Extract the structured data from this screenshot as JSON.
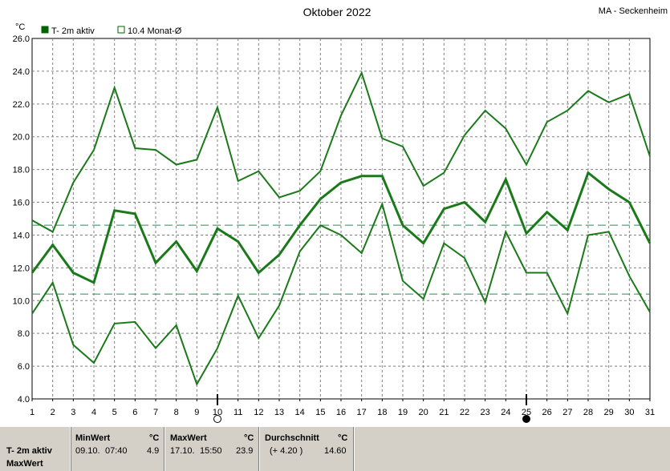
{
  "station": "MA - Seckenheim",
  "chart_data": {
    "type": "line",
    "title": "Oktober 2022",
    "ylabel": "°C",
    "ylim": [
      4.0,
      26.0
    ],
    "yticks": [
      "4.0",
      "6.0",
      "8.0",
      "10.0",
      "12.0",
      "14.0",
      "16.0",
      "18.0",
      "20.0",
      "22.0",
      "24.0",
      "26.0"
    ],
    "categories": [
      "1",
      "2",
      "3",
      "4",
      "5",
      "6",
      "7",
      "8",
      "9",
      "10",
      "11",
      "12",
      "13",
      "14",
      "15",
      "16",
      "17",
      "18",
      "19",
      "20",
      "21",
      "22",
      "23",
      "24",
      "25",
      "26",
      "27",
      "28",
      "29",
      "30",
      "31"
    ],
    "legend": [
      {
        "label": "T- 2m aktiv",
        "color": "#006400",
        "filled": true
      },
      {
        "label": "10.4 Monat-Ø",
        "color": "#006400",
        "filled": false
      }
    ],
    "series": [
      {
        "role": "max",
        "color": "#1a7a1a",
        "values": [
          14.9,
          14.2,
          17.2,
          19.2,
          23.0,
          19.3,
          19.2,
          18.3,
          18.6,
          21.8,
          17.3,
          17.9,
          16.3,
          16.7,
          17.9,
          21.3,
          23.9,
          19.9,
          19.4,
          17.0,
          17.8,
          20.1,
          21.6,
          20.5,
          18.3,
          20.9,
          21.6,
          22.8,
          22.1,
          22.6,
          18.8
        ]
      },
      {
        "role": "avg",
        "color": "#1a7a1a",
        "values": [
          11.7,
          13.4,
          11.7,
          11.1,
          15.5,
          15.3,
          12.3,
          13.6,
          11.8,
          14.4,
          13.6,
          11.7,
          12.8,
          14.6,
          16.2,
          17.2,
          17.6,
          17.6,
          14.6,
          13.5,
          15.6,
          16.0,
          14.8,
          17.4,
          14.1,
          15.4,
          14.3,
          17.8,
          16.8,
          16.0,
          13.5
        ]
      },
      {
        "role": "min",
        "color": "#1a7a1a",
        "values": [
          9.2,
          11.1,
          7.3,
          6.2,
          8.6,
          8.7,
          7.1,
          8.5,
          4.9,
          7.1,
          10.3,
          7.7,
          9.7,
          13.0,
          14.6,
          14.0,
          12.9,
          15.9,
          11.2,
          10.1,
          13.5,
          12.6,
          9.9,
          14.2,
          11.7,
          11.7,
          9.2,
          14.0,
          14.2,
          11.5,
          9.3
        ]
      }
    ],
    "reference_lines": [
      14.6,
      10.4
    ],
    "moon_phases": [
      {
        "day": 10,
        "phase": "full"
      },
      {
        "day": 25,
        "phase": "new"
      }
    ]
  },
  "stats": {
    "row_label": "T- 2m aktiv",
    "row_label2": "MaxWert",
    "unit": "°C",
    "min": {
      "header": "MinWert",
      "date": "09.10.",
      "time": "07:40",
      "value": "4.9"
    },
    "max": {
      "header": "MaxWert",
      "date": "17.10.",
      "time": "15:50",
      "value": "23.9"
    },
    "avg": {
      "header": "Durchschnitt",
      "diff": "(+ 4.20 )",
      "value": "14.60"
    }
  }
}
